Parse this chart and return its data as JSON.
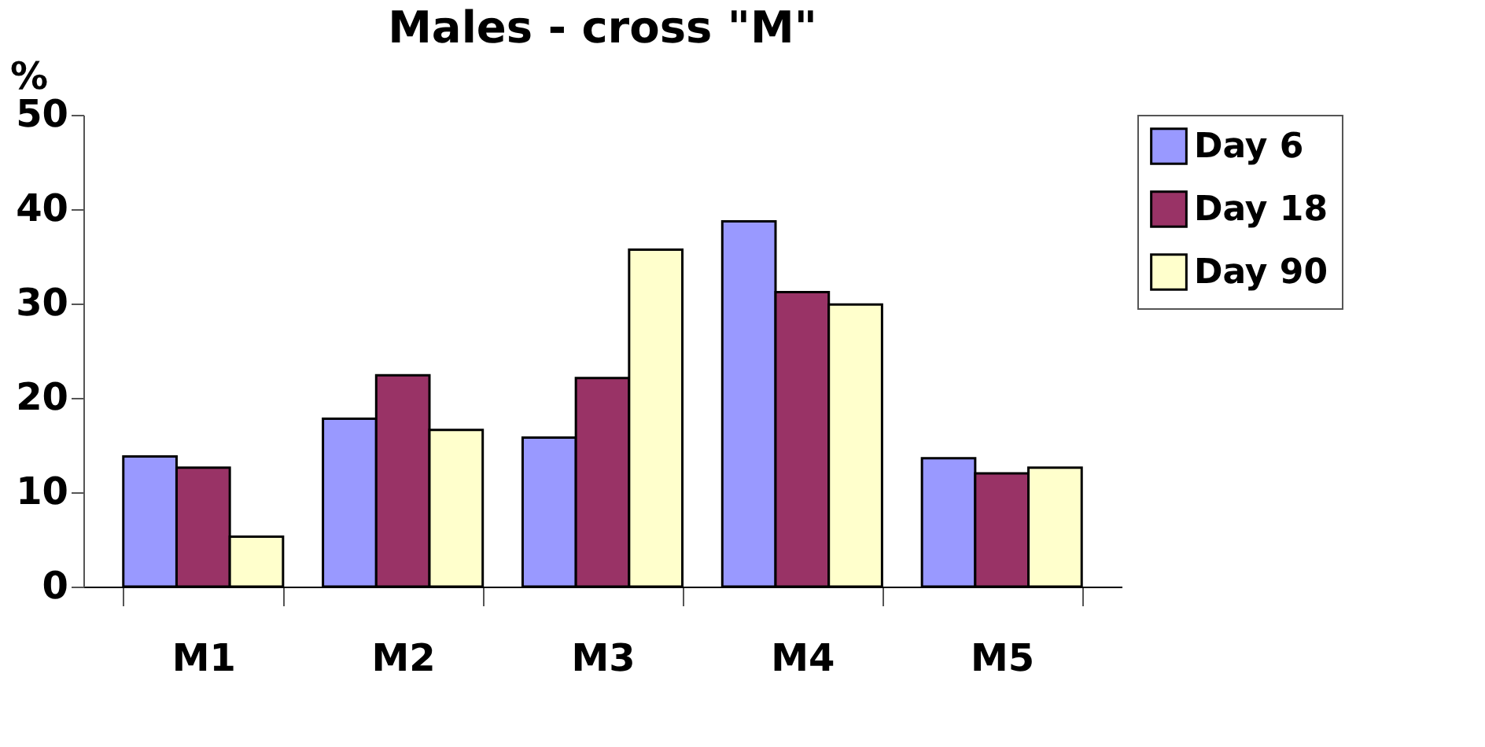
{
  "chart_data": {
    "type": "bar",
    "title": "Males - cross \"M\"",
    "ylabel": "%",
    "categories": [
      "M1",
      "M2",
      "M3",
      "M4",
      "M5"
    ],
    "series": [
      {
        "name": "Day 6",
        "color": "#9999ff",
        "values": [
          13.8,
          17.8,
          15.8,
          38.7,
          13.6
        ]
      },
      {
        "name": "Day 18",
        "color": "#993366",
        "values": [
          12.6,
          22.4,
          22.1,
          31.2,
          12.0
        ]
      },
      {
        "name": "Day 90",
        "color": "#ffffcc",
        "values": [
          5.3,
          16.6,
          35.7,
          29.9,
          12.6
        ]
      }
    ],
    "ylim": [
      0,
      50
    ],
    "yticks": [
      0,
      10,
      20,
      30,
      40,
      50
    ],
    "grid": false,
    "legend": "right"
  }
}
